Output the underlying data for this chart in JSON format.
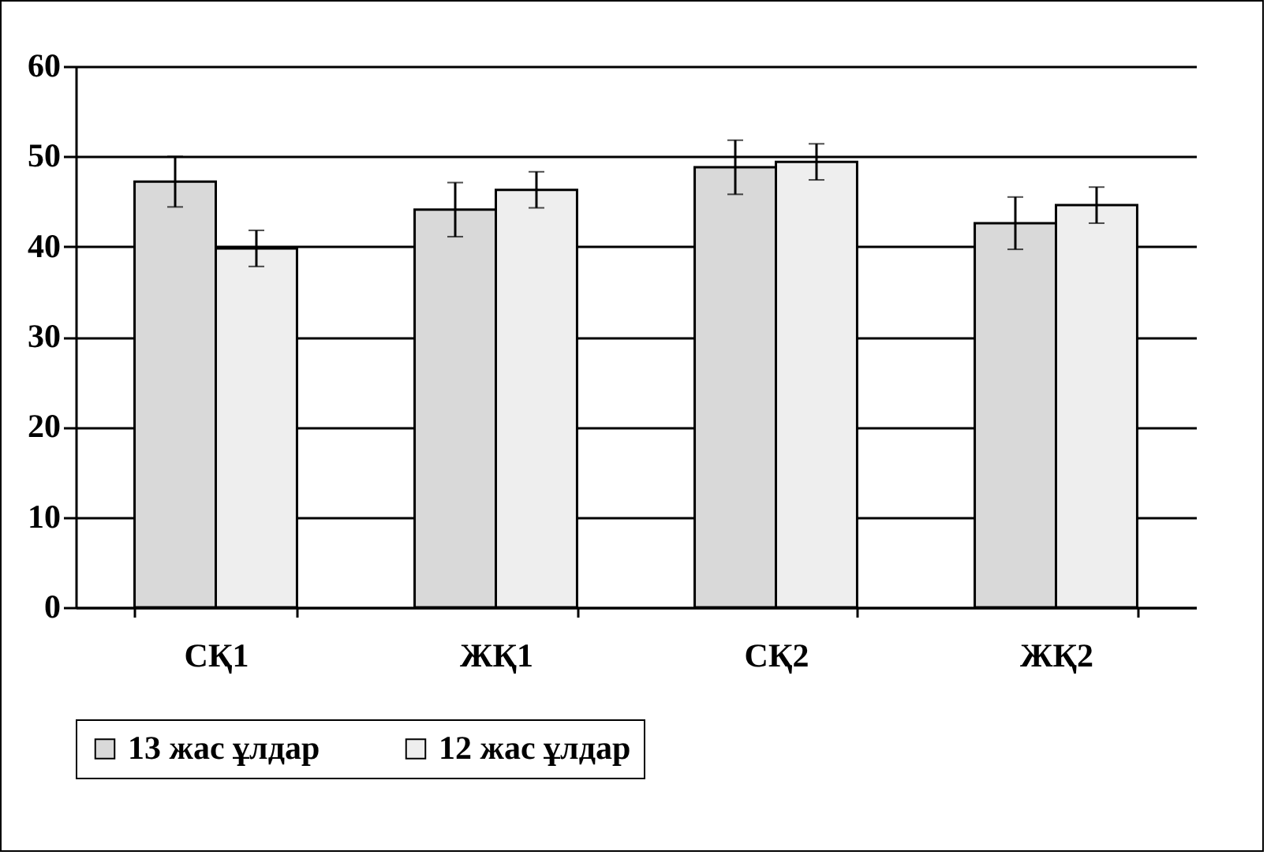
{
  "chart_data": {
    "type": "bar",
    "categories": [
      "СҚ1",
      "ЖҚ1",
      "СҚ2",
      "ЖҚ2"
    ],
    "series": [
      {
        "name": "13 жас ұлдар",
        "color": "#d9d9d9",
        "values": [
          47.2,
          44.1,
          48.8,
          42.6
        ],
        "errors": [
          2.8,
          3.0,
          3.0,
          2.9
        ]
      },
      {
        "name": "12 жас ұлдар",
        "color": "#eeeeee",
        "values": [
          39.8,
          46.3,
          49.4,
          44.6
        ],
        "errors": [
          2.0,
          2.0,
          2.0,
          2.0
        ]
      }
    ],
    "ylim": [
      0,
      60
    ],
    "yticks": [
      0,
      10,
      20,
      30,
      40,
      50,
      60
    ],
    "grid": "y",
    "legend": "bottom"
  }
}
